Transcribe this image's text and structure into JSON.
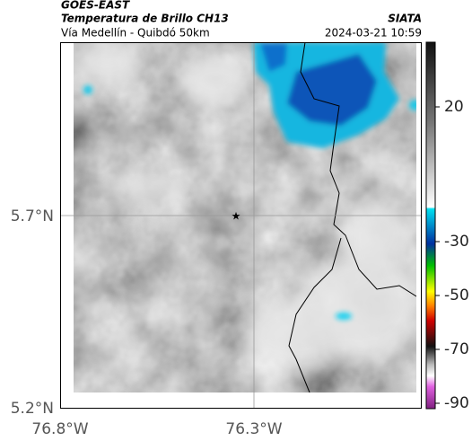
{
  "header": {
    "source": "GOES-EAST",
    "product": "Temperatura de Brillo CH13",
    "region": "Vía Medellín - Quibdó 50km",
    "organization": "SIATA",
    "datetime": "2024-03-21 10:59"
  },
  "map": {
    "lat_labels": [
      "5.7°N",
      "5.2°N"
    ],
    "lon_labels": [
      "76.8°W",
      "76.3°W"
    ]
  },
  "colorbar": {
    "range": [
      -92,
      44
    ],
    "ticks": [
      20,
      -30,
      -50,
      -70,
      -90
    ]
  }
}
